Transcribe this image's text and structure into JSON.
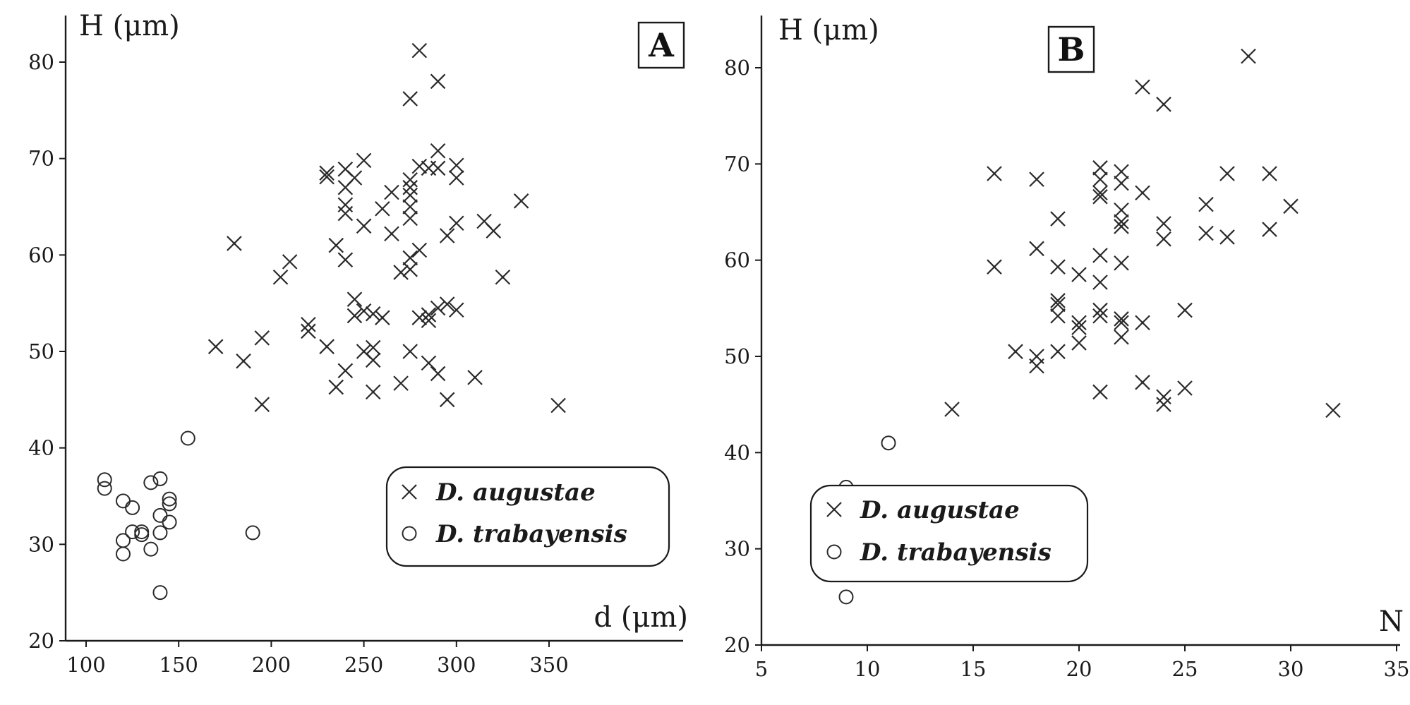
{
  "chart_data": [
    {
      "type": "scatter",
      "panel_label": "A",
      "xlabel": "d (μm)",
      "ylabel": "H (μm)",
      "xlim": [
        90,
        375
      ],
      "ylim": [
        20,
        85
      ],
      "xticks": [
        100,
        150,
        200,
        250,
        300,
        350
      ],
      "yticks": [
        20,
        30,
        40,
        50,
        60,
        70,
        80
      ],
      "grid": false,
      "legend_position": "lower-right",
      "series": [
        {
          "name": "D. augustae",
          "marker": "x",
          "x": [
            170,
            180,
            185,
            195,
            195,
            205,
            210,
            220,
            220,
            230,
            230,
            230,
            235,
            235,
            240,
            240,
            240,
            240,
            240,
            240,
            245,
            245,
            245,
            250,
            250,
            250,
            250,
            255,
            255,
            255,
            255,
            260,
            260,
            265,
            265,
            270,
            270,
            275,
            275,
            275,
            275,
            275,
            275,
            275,
            275,
            275,
            280,
            280,
            280,
            280,
            285,
            285,
            285,
            285,
            290,
            290,
            290,
            290,
            290,
            295,
            295,
            295,
            300,
            300,
            300,
            300,
            310,
            315,
            320,
            325,
            335,
            355
          ],
          "y": [
            50.5,
            61.2,
            49,
            51.4,
            44.5,
            57.7,
            59.3,
            52.1,
            52.8,
            68.1,
            68.5,
            50.5,
            46.3,
            61,
            48,
            59.5,
            64.3,
            65.2,
            67,
            68.9,
            68,
            53.7,
            55.4,
            50,
            69.8,
            63,
            54.2,
            50.4,
            49.1,
            53.9,
            45.8,
            64.8,
            53.5,
            62.2,
            66.5,
            46.7,
            58.2,
            76.2,
            67.8,
            67,
            66.2,
            65,
            63.8,
            58.5,
            59.7,
            50,
            81.2,
            60.5,
            53.5,
            69.2,
            53.2,
            48.8,
            53.8,
            69,
            70.8,
            54.5,
            47.7,
            78,
            69,
            54.9,
            62,
            45,
            69.3,
            68,
            63.3,
            54.3,
            47.3,
            63.5,
            62.5,
            57.7,
            65.6,
            44.4
          ]
        },
        {
          "name": "D. trabayensis",
          "marker": "o",
          "x": [
            110,
            110,
            120,
            120,
            120,
            125,
            125,
            130,
            130,
            135,
            135,
            140,
            140,
            140,
            140,
            145,
            145,
            145,
            155,
            190
          ],
          "y": [
            36.7,
            35.8,
            34.5,
            30.4,
            29,
            33.8,
            31.3,
            31.3,
            31,
            36.4,
            29.5,
            36.8,
            33,
            31.2,
            25,
            34.7,
            34.2,
            32.3,
            41,
            31.2
          ]
        }
      ]
    },
    {
      "type": "scatter",
      "panel_label": "B",
      "xlabel": "N",
      "ylabel": "H (μm)",
      "xlim": [
        5,
        35
      ],
      "ylim": [
        20,
        85
      ],
      "xticks": [
        5,
        10,
        15,
        20,
        25,
        30,
        35
      ],
      "yticks": [
        20,
        30,
        40,
        50,
        60,
        70,
        80
      ],
      "grid": false,
      "legend_position": "lower-right",
      "series": [
        {
          "name": "D. augustae",
          "marker": "x",
          "x": [
            14,
            16,
            16,
            17,
            18,
            18,
            18,
            18,
            19,
            19,
            19,
            19,
            19,
            19,
            20,
            20,
            20,
            20,
            21,
            21,
            21,
            21,
            21,
            21,
            21,
            21,
            21,
            22,
            22,
            22,
            22,
            22,
            22,
            22,
            22,
            22,
            23,
            23,
            23,
            23,
            24,
            24,
            24,
            24,
            24,
            25,
            25,
            26,
            26,
            27,
            27,
            28,
            29,
            29,
            30,
            32
          ],
          "y": [
            44.5,
            69,
            59.3,
            50.5,
            68.4,
            61.2,
            50,
            49,
            64.3,
            59.3,
            55.8,
            54.2,
            50.5,
            55.4,
            58.5,
            53.5,
            53,
            51.4,
            69.6,
            68.4,
            67,
            66.6,
            60.5,
            57.7,
            54.2,
            54.8,
            46.3,
            69.2,
            68,
            65.2,
            64,
            63.5,
            59.7,
            53.9,
            53.5,
            52,
            78,
            67,
            53.5,
            47.3,
            76.2,
            63.8,
            62.2,
            45,
            45.8,
            54.8,
            46.7,
            65.8,
            62.8,
            69,
            62.4,
            81.2,
            69,
            63.2,
            65.6,
            44.4
          ]
        },
        {
          "name": "D. trabayensis",
          "marker": "o",
          "x": [
            8,
            8,
            8,
            9,
            9,
            9,
            10,
            10,
            10,
            10,
            10,
            10,
            11,
            11,
            11
          ],
          "y": [
            33.8,
            30.5,
            29,
            36.4,
            31.4,
            25,
            35.8,
            34.8,
            34.3,
            33,
            31.3,
            31.2,
            41,
            31.2,
            29.4
          ]
        }
      ]
    }
  ]
}
